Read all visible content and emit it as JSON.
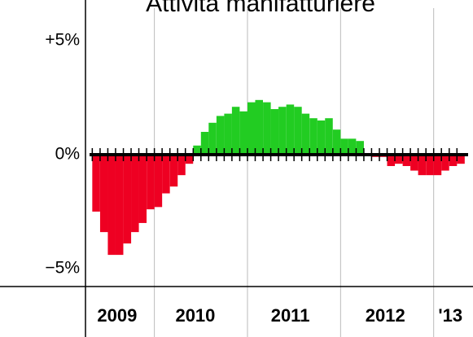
{
  "chart_data": {
    "type": "bar",
    "title": "Attività manifatturiere",
    "x": [
      2009.333,
      2009.417,
      2009.5,
      2009.583,
      2009.667,
      2009.75,
      2009.833,
      2009.917,
      2010,
      2010.083,
      2010.167,
      2010.25,
      2010.333,
      2010.417,
      2010.5,
      2010.583,
      2010.667,
      2010.75,
      2010.833,
      2010.917,
      2011,
      2011.083,
      2011.167,
      2011.25,
      2011.333,
      2011.417,
      2011.5,
      2011.583,
      2011.667,
      2011.75,
      2011.833,
      2011.917,
      2012,
      2012.083,
      2012.167,
      2012.25,
      2012.333,
      2012.417,
      2012.5,
      2012.583,
      2012.667,
      2012.75,
      2012.833,
      2012.917,
      2013,
      2013.083,
      2013.167,
      2013.25
    ],
    "values": [
      -2.5,
      -3.4,
      -4.4,
      -4.4,
      -3.9,
      -3.4,
      -3.0,
      -2.4,
      -2.3,
      -1.7,
      -1.4,
      -0.9,
      -0.4,
      0.4,
      1.0,
      1.4,
      1.7,
      1.8,
      2.1,
      1.9,
      2.3,
      2.4,
      2.3,
      2.0,
      2.1,
      2.2,
      2.1,
      1.8,
      1.6,
      1.5,
      1.6,
      1.1,
      0.7,
      0.7,
      0.6,
      0,
      -0.1,
      -0.1,
      -0.5,
      -0.4,
      -0.5,
      -0.7,
      -0.9,
      -0.9,
      -0.9,
      -0.7,
      -0.5,
      -0.4
    ],
    "positive_color": "#22cc22",
    "negative_color": "#ee0022",
    "xlim": [
      2009.26,
      2013.37
    ],
    "xticks": [
      2010,
      2011,
      2012,
      2013
    ],
    "year_labels": [
      {
        "value": 2009.6,
        "label": "2009"
      },
      {
        "value": 2010.44,
        "label": "2010"
      },
      {
        "value": 2011.46,
        "label": "2011"
      },
      {
        "value": 2012.48,
        "label": "2012"
      },
      {
        "value": 2013.18,
        "label": "'13"
      }
    ],
    "ylim": [
      -5.79,
      6.79
    ],
    "yticks": [
      {
        "value": 5,
        "label": "+5%"
      },
      {
        "value": 0,
        "label": "0%"
      },
      {
        "value": -5,
        "label": "−5%"
      }
    ]
  }
}
